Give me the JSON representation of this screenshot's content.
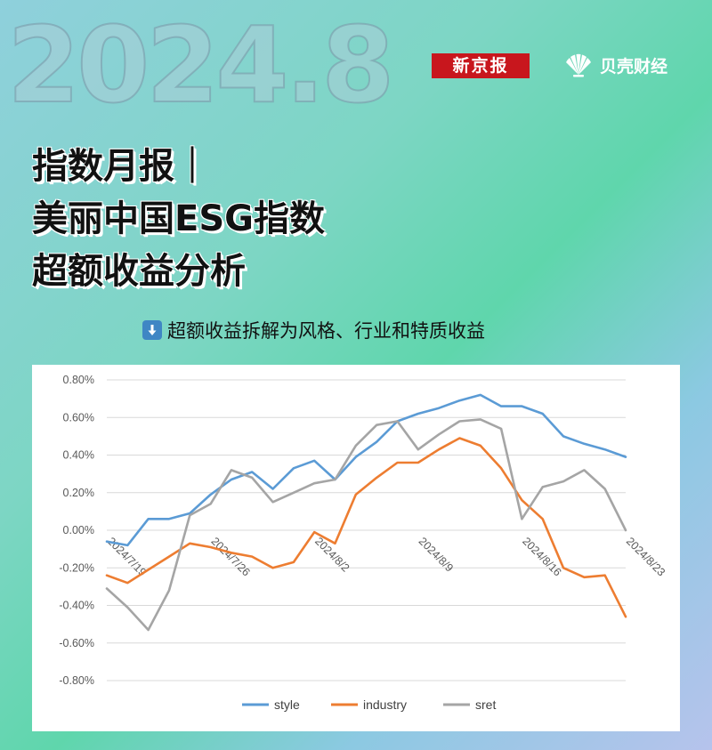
{
  "header": {
    "year_bg": "2024.8",
    "logo_xjb": "新京报",
    "logo_bk": "贝壳财经"
  },
  "title": {
    "line1": "指数月报｜",
    "line2": "美丽中国ESG指数",
    "line3": "超额收益分析"
  },
  "subtitle": {
    "icon": "down-arrow-icon",
    "text": "超额收益拆解为风格、行业和特质收益"
  },
  "colors": {
    "style": "#5b9bd5",
    "industry": "#ed7d31",
    "sret": "#a5a5a5",
    "brand_red": "#c8161d"
  },
  "chart_data": {
    "type": "line",
    "title": "",
    "xlabel": "",
    "ylabel": "",
    "ylim": [
      -0.8,
      0.8
    ],
    "y_ticks": [
      "0.80%",
      "0.60%",
      "0.40%",
      "0.20%",
      "0.00%",
      "-0.20%",
      "-0.40%",
      "-0.60%",
      "-0.80%"
    ],
    "y_tick_values": [
      0.8,
      0.6,
      0.4,
      0.2,
      0.0,
      -0.2,
      -0.4,
      -0.6,
      -0.8
    ],
    "x_tick_labels": [
      "2024/7/19",
      "2024/7/26",
      "2024/8/2",
      "2024/8/9",
      "2024/8/16",
      "2024/8/23"
    ],
    "x": [
      "2024/7/19",
      "2024/7/22",
      "2024/7/23",
      "2024/7/24",
      "2024/7/25",
      "2024/7/26",
      "2024/7/29",
      "2024/7/30",
      "2024/7/31",
      "2024/8/1",
      "2024/8/2",
      "2024/8/5",
      "2024/8/6",
      "2024/8/7",
      "2024/8/8",
      "2024/8/9",
      "2024/8/12",
      "2024/8/13",
      "2024/8/14",
      "2024/8/15",
      "2024/8/16",
      "2024/8/19",
      "2024/8/20",
      "2024/8/21",
      "2024/8/22",
      "2024/8/23"
    ],
    "grid": true,
    "legend_position": "bottom",
    "series": [
      {
        "name": "style",
        "values": [
          -0.06,
          -0.08,
          0.06,
          0.06,
          0.09,
          0.19,
          0.27,
          0.31,
          0.22,
          0.33,
          0.37,
          0.27,
          0.39,
          0.47,
          0.58,
          0.62,
          0.65,
          0.69,
          0.72,
          0.66,
          0.66,
          0.62,
          0.5,
          0.46,
          0.43,
          0.39
        ]
      },
      {
        "name": "industry",
        "values": [
          -0.24,
          -0.28,
          -0.21,
          -0.14,
          -0.07,
          -0.09,
          -0.12,
          -0.14,
          -0.2,
          -0.17,
          -0.01,
          -0.07,
          0.19,
          0.28,
          0.36,
          0.36,
          0.43,
          0.49,
          0.45,
          0.33,
          0.16,
          0.06,
          -0.2,
          -0.25,
          -0.24,
          -0.46
        ]
      },
      {
        "name": "sret",
        "values": [
          -0.31,
          -0.41,
          -0.53,
          -0.32,
          0.08,
          0.14,
          0.32,
          0.28,
          0.15,
          0.2,
          0.25,
          0.27,
          0.45,
          0.56,
          0.58,
          0.43,
          0.51,
          0.58,
          0.59,
          0.54,
          0.06,
          0.23,
          0.26,
          0.32,
          0.22,
          0.0
        ]
      }
    ]
  }
}
